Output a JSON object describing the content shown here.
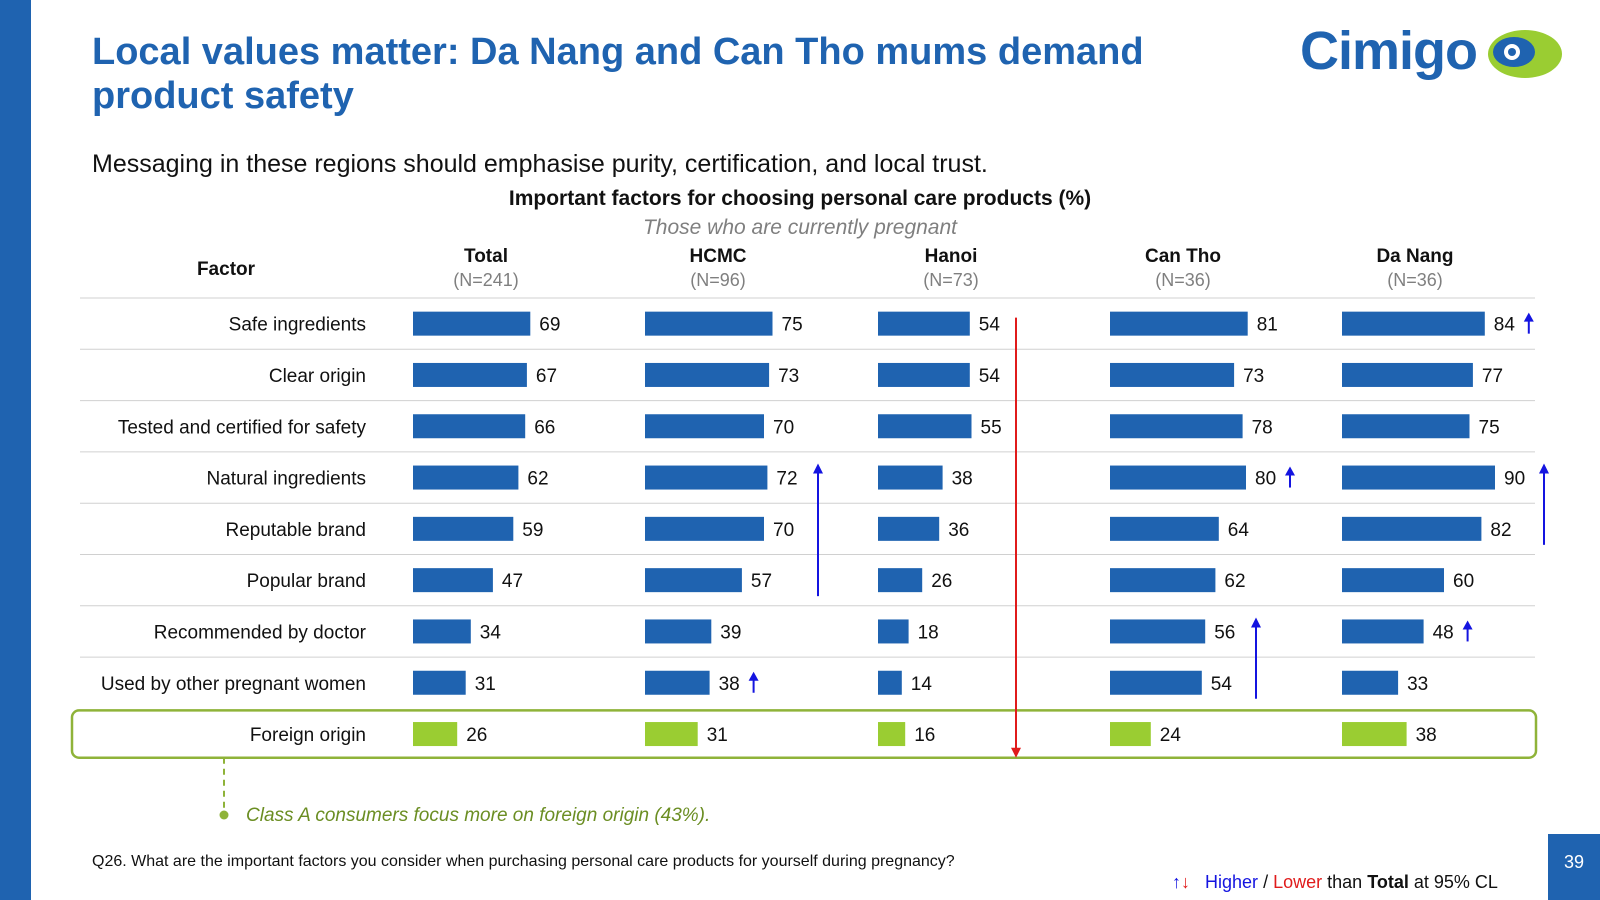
{
  "page": {
    "title": "Local values matter: Da Nang and Can Tho mums demand product safety",
    "subtitle": "Messaging in these regions should emphasise purity, certification, and local trust.",
    "logo_text": "Cimigo",
    "note": "Class A consumers focus more on foreign origin (43%).",
    "question": "Q26. What are the important factors you consider when purchasing personal care products for yourself during pregnancy?",
    "legend": {
      "higher": "Higher",
      "sep": "/",
      "lower": "Lower",
      "than": "than",
      "total": "Total",
      "cl": "at 95% CL"
    },
    "page_number": "39"
  },
  "colors": {
    "primary": "#1f63b0",
    "highlight": "#9acd32",
    "highlight_border": "#8fb339",
    "higher_arrow": "#1414e0",
    "lower_arrow": "#e01b1b",
    "note_text": "#6b8e23"
  },
  "chart_data": {
    "type": "bar",
    "orientation": "horizontal",
    "title": "Important factors for choosing personal care products (%)",
    "subtitle": "Those who are currently pregnant",
    "factor_header": "Factor",
    "categories": [
      "Safe ingredients",
      "Clear origin",
      "Tested and certified for safety",
      "Natural ingredients",
      "Reputable brand",
      "Popular brand",
      "Recommended by doctor",
      "Used by other pregnant women",
      "Foreign origin"
    ],
    "highlighted_category": "Foreign origin",
    "xlim": [
      0,
      100
    ],
    "series": [
      {
        "name": "Total",
        "n": "(N=241)",
        "values": [
          69,
          67,
          66,
          62,
          59,
          47,
          34,
          31,
          26
        ],
        "higher": []
      },
      {
        "name": "HCMC",
        "n": "(N=96)",
        "values": [
          75,
          73,
          70,
          72,
          70,
          57,
          39,
          38,
          31
        ],
        "higher": [
          "Used by other pregnant women"
        ]
      },
      {
        "name": "Hanoi",
        "n": "(N=73)",
        "values": [
          54,
          54,
          55,
          38,
          36,
          26,
          18,
          14,
          16
        ],
        "higher": []
      },
      {
        "name": "Can Tho",
        "n": "(N=36)",
        "values": [
          81,
          73,
          78,
          80,
          64,
          62,
          56,
          54,
          24
        ],
        "higher": [
          "Natural ingredients"
        ]
      },
      {
        "name": "Da Nang",
        "n": "(N=36)",
        "values": [
          84,
          77,
          75,
          90,
          82,
          60,
          48,
          33,
          38
        ],
        "higher": [
          "Safe ingredients",
          "Recommended by doctor"
        ]
      }
    ],
    "group_indicators": [
      {
        "series": "HCMC",
        "direction": "higher",
        "from": "Natural ingredients",
        "to": "Popular brand"
      },
      {
        "series": "Hanoi",
        "direction": "lower",
        "from": "Safe ingredients",
        "to": "Foreign origin"
      },
      {
        "series": "Can Tho",
        "direction": "higher",
        "from": "Recommended by doctor",
        "to": "Used by other pregnant women"
      },
      {
        "series": "Da Nang",
        "direction": "higher",
        "from": "Natural ingredients",
        "to": "Reputable brand"
      }
    ]
  }
}
